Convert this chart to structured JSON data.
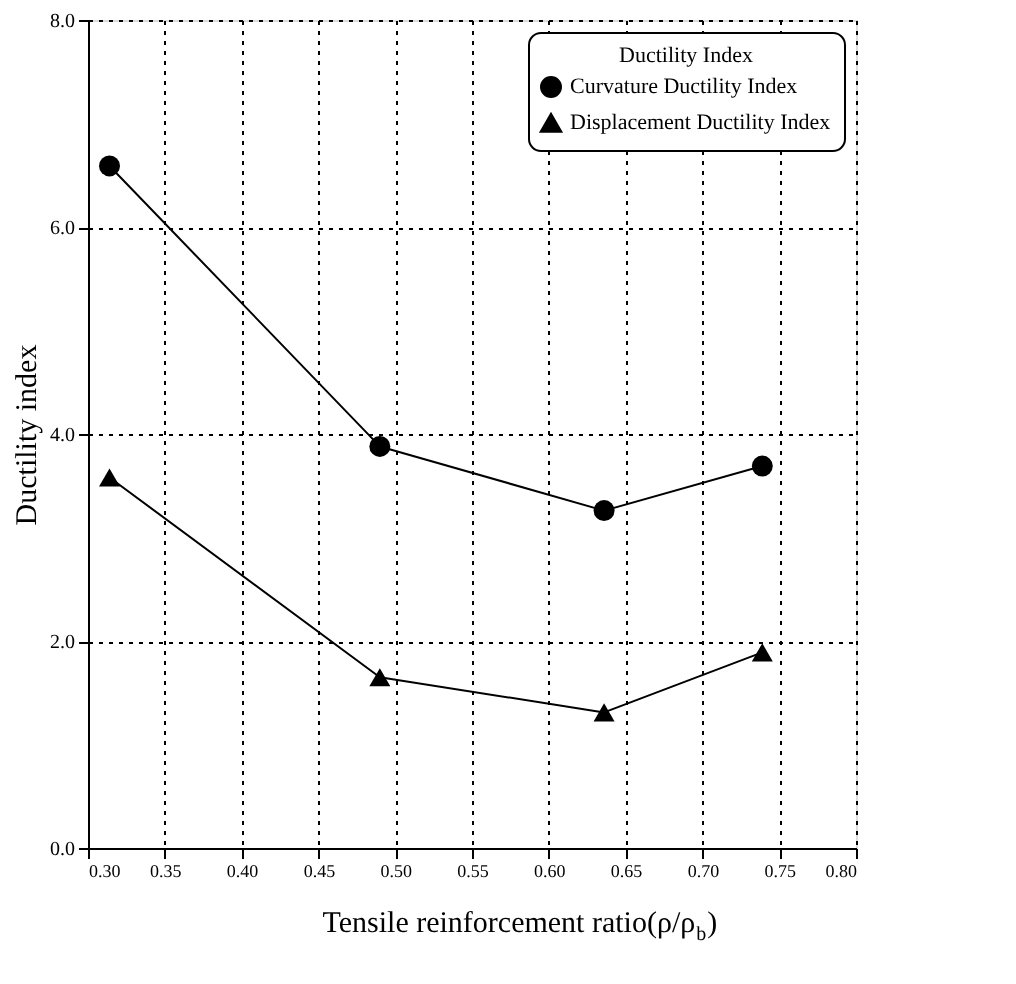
{
  "chart_data": {
    "type": "line",
    "xlabel": "Tensile reinforcement ratio(ρ/ρ$_{b}$)",
    "ylabel": "Ductility index",
    "legend_title": "Ductility Index",
    "xlim": [
      0.3,
      0.8
    ],
    "xticks": [
      {
        "value": 0.3,
        "label": "0.30"
      },
      0.35,
      {
        "value": 0.4,
        "label": "0.40"
      },
      0.45,
      {
        "value": 0.5,
        "label": "0.50"
      },
      0.55,
      {
        "value": 0.6,
        "label": "0.60"
      },
      0.65,
      {
        "value": 0.7,
        "label": "0.70"
      },
      0.75,
      {
        "value": 0.8,
        "label": "0.80"
      }
    ],
    "ylim": [
      0,
      8
    ],
    "yticks": [
      {
        "value": 0,
        "label": "0.0"
      },
      {
        "value": 2,
        "label": "2.0"
      },
      {
        "value": 4,
        "label": "4.0"
      },
      {
        "value": 6,
        "label": "6.0"
      },
      {
        "value": 8,
        "label": "8.0"
      }
    ],
    "x": [
      0.314,
      0.49,
      0.636,
      0.739
    ],
    "series": [
      {
        "name": "Curvature Ductility Index",
        "color": "#000000",
        "marker": "circle",
        "values": [
          6.59,
          3.88,
          3.26,
          3.69
        ]
      },
      {
        "name": "Displacement Ductility Index",
        "color": "#000000",
        "marker": "triangle",
        "values": [
          3.58,
          1.65,
          1.31,
          1.89
        ]
      }
    ],
    "grid": true,
    "legend": "top right",
    "line_style": "solid"
  }
}
